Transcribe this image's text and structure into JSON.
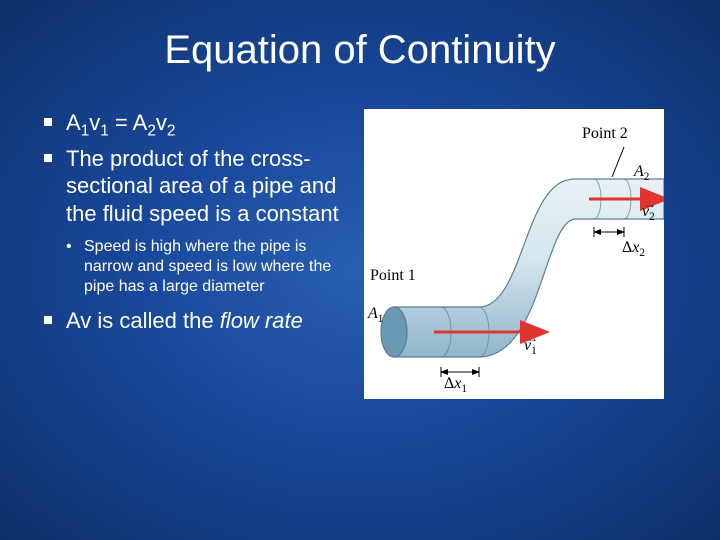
{
  "title": "Equation of Continuity",
  "bullet1_html": "A<sub class='sub1'>1</sub>v<sub class='sub1'>1</sub> = A<sub class='sub1'>2</sub>v<sub class='sub1'>2</sub>",
  "bullet2": "The product of the cross-sectional area of a pipe and the fluid speed is a constant",
  "subbullet": "Speed is high where the pipe is narrow and speed is low where the pipe has a large diameter",
  "bullet3_html": "Av is called the <span class='italic'>flow rate</span>",
  "figure": {
    "label_point1": "Point 1",
    "label_point2": "Point 2",
    "label_A1_html": "<span class='italic'>A</span><sub class='sub1'>1</sub>",
    "label_A2_html": "<span class='italic'>A</span><sub class='sub1'>2</sub>",
    "label_v1_html": "<span style='position:relative'><span style='position:absolute;top:-6px;left:2px;font-size:12px'>&rarr;</span><span class='italic'>v</span></span><sub class='sub1'>1</sub>",
    "label_v2_html": "<span style='position:relative'><span style='position:absolute;top:-6px;left:2px;font-size:12px'>&rarr;</span><span class='italic'>v</span></span><sub class='sub1'>2</sub>",
    "label_dx1_html": "&Delta;<span class='italic'>x</span><sub class='sub1'>1</sub>",
    "label_dx2_html": "&Delta;<span class='italic'>x</span><sub class='sub1'>2</sub>",
    "colors": {
      "pipe_fill_light": "#d5e6ee",
      "pipe_fill_mid": "#9cc2d6",
      "pipe_stroke": "#5a7f95",
      "cap_fill": "#6a99b5",
      "arrow_red": "#e0352f",
      "dim_line": "#000000"
    }
  }
}
